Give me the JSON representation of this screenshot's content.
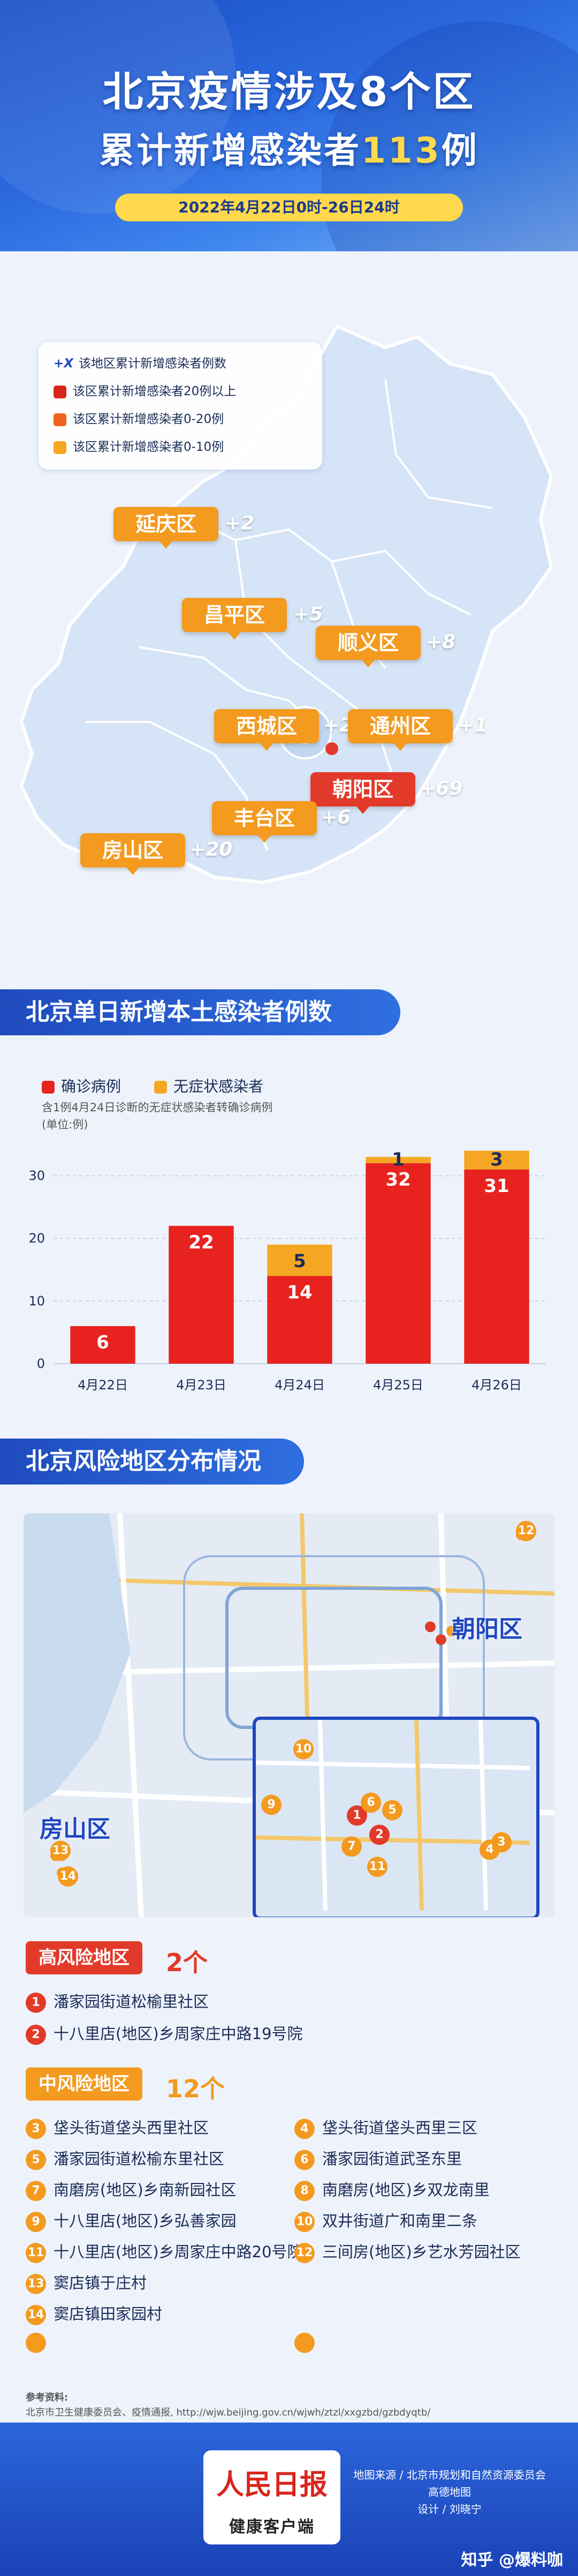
{
  "header": {
    "title_line1": "北京疫情涉及8个区",
    "title_line2_prefix": "累计新增感染者",
    "title_line2_number": "113",
    "title_line2_suffix": "例",
    "date_range": "2022年4月22日0时-26日24时"
  },
  "map_legend": {
    "symbol": "+X",
    "title": "该地区累计新增感染者例数",
    "items": [
      {
        "label": "该区累计新增感染者20例以上",
        "color": "#d7261c"
      },
      {
        "label": "该区累计新增感染者0-20例",
        "color": "#f0621f"
      },
      {
        "label": "该区累计新增感染者0-10例",
        "color": "#f5a623"
      }
    ]
  },
  "districts": [
    {
      "name": "延庆区",
      "count": "+2",
      "level": "low"
    },
    {
      "name": "昌平区",
      "count": "+5",
      "level": "low"
    },
    {
      "name": "顺义区",
      "count": "+8",
      "level": "low"
    },
    {
      "name": "西城区",
      "count": "+2",
      "level": "low"
    },
    {
      "name": "通州区",
      "count": "+1",
      "level": "low"
    },
    {
      "name": "朝阳区",
      "count": "+69",
      "level": "high"
    },
    {
      "name": "丰台区",
      "count": "+6",
      "level": "low"
    },
    {
      "name": "房山区",
      "count": "+20",
      "level": "low"
    }
  ],
  "section_chart": {
    "title": "北京单日新增本土感染者例数"
  },
  "chart_data": {
    "type": "bar",
    "stacked": true,
    "categories": [
      "4月22日",
      "4月23日",
      "4月24日",
      "4月25日",
      "4月26日"
    ],
    "series": [
      {
        "name": "确诊病例",
        "color": "#e8231f",
        "values": [
          6,
          22,
          14,
          32,
          31
        ]
      },
      {
        "name": "无症状感染者",
        "color": "#f5a623",
        "values": [
          0,
          0,
          5,
          1,
          3
        ]
      }
    ],
    "ylim": [
      0,
      35
    ],
    "yticks": [
      0,
      10,
      20,
      30
    ],
    "note": "含1例4月24日诊断的无症状感染者转确诊病例",
    "unit": "(单位:例)",
    "grid": true,
    "legend": "top-left"
  },
  "section_risk": {
    "title": "北京风险地区分布情况"
  },
  "risk_map": {
    "label_chaoyang": "朝阳区",
    "label_fangshan": "房山区"
  },
  "high_risk": {
    "label": "高风险地区",
    "count": "2个",
    "items": [
      {
        "num": "1",
        "text": "潘家园街道松榆里社区"
      },
      {
        "num": "2",
        "text": "十八里店(地区)乡周家庄中路19号院"
      }
    ]
  },
  "mid_risk": {
    "label": "中风险地区",
    "count": "12个",
    "items": [
      {
        "num": "3",
        "text": "垡头街道垡头西里社区"
      },
      {
        "num": "4",
        "text": "垡头街道垡头西里三区"
      },
      {
        "num": "5",
        "text": "潘家园街道松榆东里社区"
      },
      {
        "num": "6",
        "text": "潘家园街道武圣东里"
      },
      {
        "num": "7",
        "text": "南磨房(地区)乡南新园社区"
      },
      {
        "num": "8",
        "text": "南磨房(地区)乡双龙南里"
      },
      {
        "num": "9",
        "text": "十八里店(地区)乡弘善家园"
      },
      {
        "num": "10",
        "text": "双井街道广和南里二条"
      },
      {
        "num": "11",
        "text": "十八里店(地区)乡周家庄中路20号院"
      },
      {
        "num": "12",
        "text": "三间房(地区)乡艺水芳园社区"
      },
      {
        "num": "13",
        "text": "窦店镇于庄村"
      },
      {
        "num": "14",
        "text": "窦店镇田家园村"
      }
    ]
  },
  "references": {
    "label": "参考资料:",
    "text": "北京市卫生健康委员会、疫情通报, http://wjw.beijing.gov.cn/wjwh/ztzl/xxgzbd/gzbdyqtb/"
  },
  "footer": {
    "logo_main": "人民日报",
    "logo_sub": "健康客户端",
    "source_line1": "地图来源 / 北京市规划和自然资源委员会",
    "source_line2": "高德地图",
    "design": "设计 / 刘晓宁",
    "watermark": "知乎 @爆料咖"
  }
}
